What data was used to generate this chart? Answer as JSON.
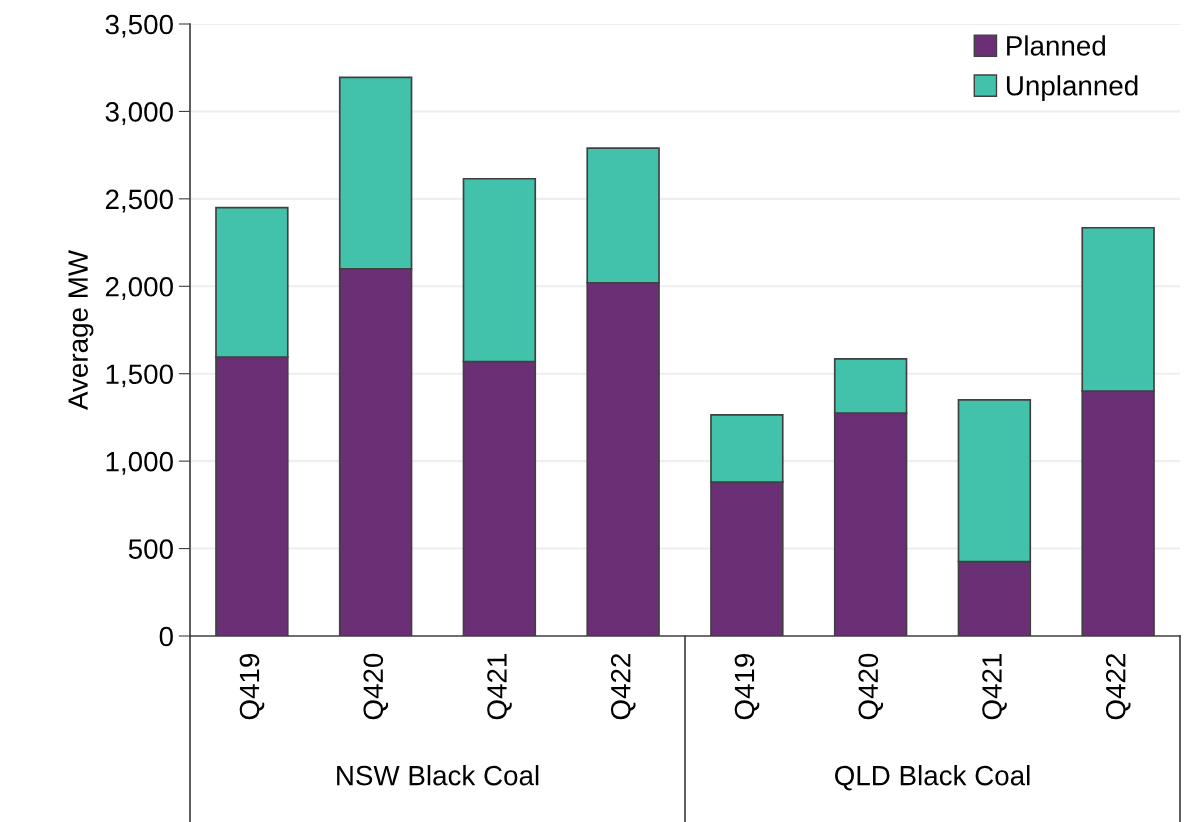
{
  "chart_data": {
    "type": "bar",
    "stacked": true,
    "ylabel": "Average MW",
    "categories": [
      "Q419",
      "Q420",
      "Q421",
      "Q422",
      "Q419",
      "Q420",
      "Q421",
      "Q422"
    ],
    "series": [
      {
        "name": "Planned",
        "color": "#6b2f76",
        "values": [
          1595,
          2100,
          1570,
          2020,
          880,
          1275,
          425,
          1400
        ]
      },
      {
        "name": "Unplanned",
        "color": "#42c2ab",
        "values": [
          855,
          1095,
          1045,
          770,
          385,
          310,
          925,
          935
        ]
      }
    ],
    "ylim": [
      0,
      3500
    ],
    "yticks": [
      {
        "value": 0,
        "label": "0"
      },
      {
        "value": 500,
        "label": "500"
      },
      {
        "value": 1000,
        "label": "1,000"
      },
      {
        "value": 1500,
        "label": "1,500"
      },
      {
        "value": 2000,
        "label": "2,000"
      },
      {
        "value": 2500,
        "label": "2,500"
      },
      {
        "value": 3000,
        "label": "3,000"
      },
      {
        "value": 3500,
        "label": "3,500"
      }
    ],
    "grid": "y",
    "legend": "top right",
    "annotations": [
      "NSW Black Coal",
      "QLD Black Coal"
    ]
  }
}
